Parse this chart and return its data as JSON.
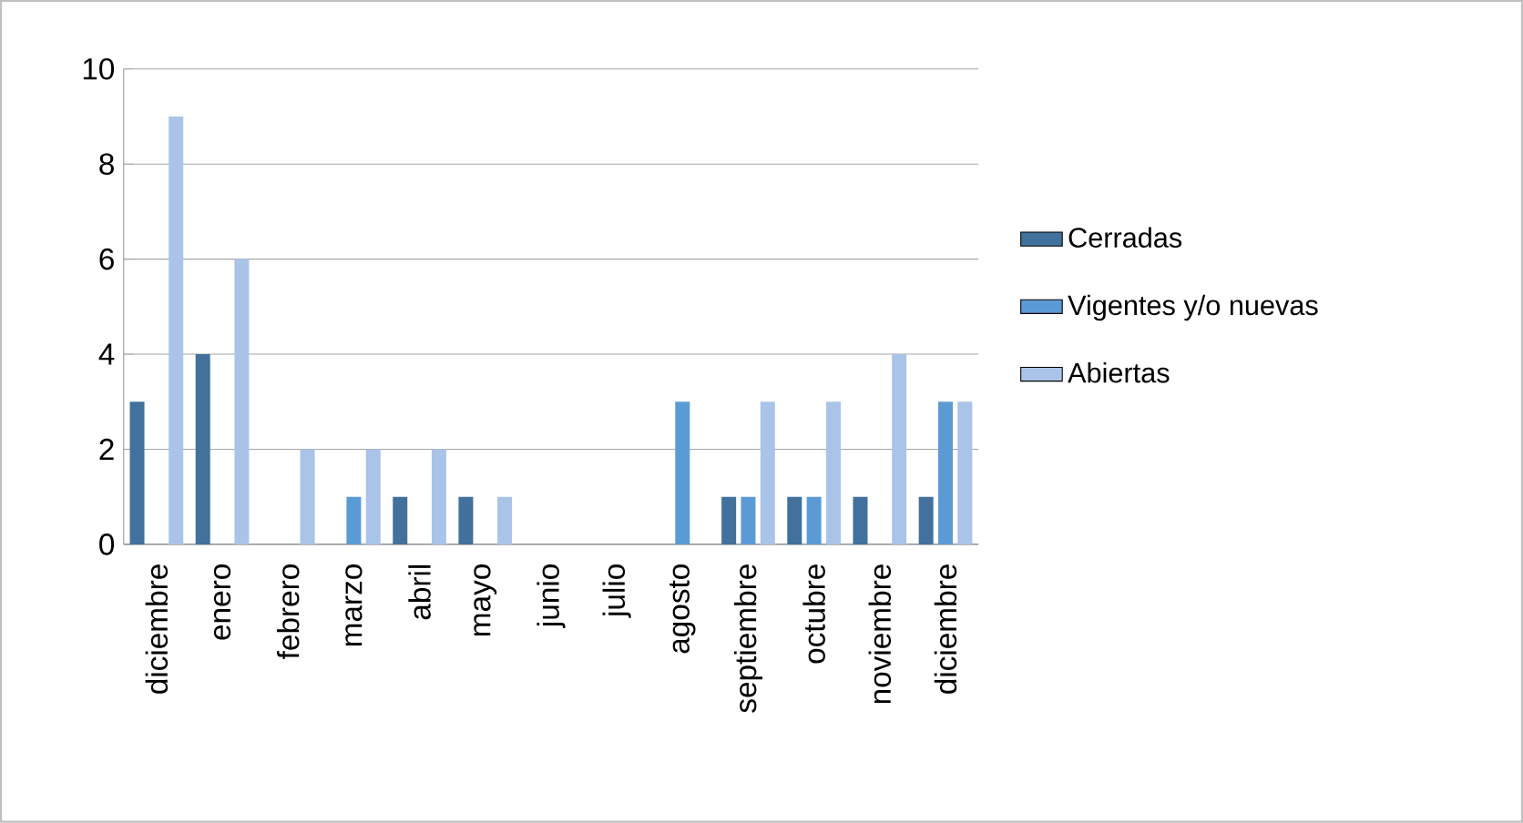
{
  "chart_data": {
    "type": "bar",
    "categories": [
      "diciembre",
      "enero",
      "febrero",
      "marzo",
      "abril",
      "mayo",
      "junio",
      "julio",
      "agosto",
      "septiembre",
      "octubre",
      "noviembre",
      "diciembre"
    ],
    "series": [
      {
        "name": "Cerradas",
        "color": "#41719c",
        "values": [
          3,
          4,
          0,
          0,
          1,
          1,
          0,
          0,
          0,
          1,
          1,
          1,
          1
        ]
      },
      {
        "name": "Vigentes y/o nuevas",
        "color": "#5b9bd5",
        "values": [
          0,
          0,
          0,
          1,
          0,
          0,
          0,
          0,
          3,
          1,
          1,
          0,
          3
        ]
      },
      {
        "name": "Abiertas",
        "color": "#a9c4e8",
        "values": [
          9,
          6,
          2,
          2,
          2,
          1,
          0,
          0,
          0,
          3,
          3,
          4,
          3
        ]
      }
    ],
    "ylim": [
      0,
      10
    ],
    "yticks": [
      0,
      2,
      4,
      6,
      8,
      10
    ],
    "grid": "y",
    "legend": "right"
  }
}
